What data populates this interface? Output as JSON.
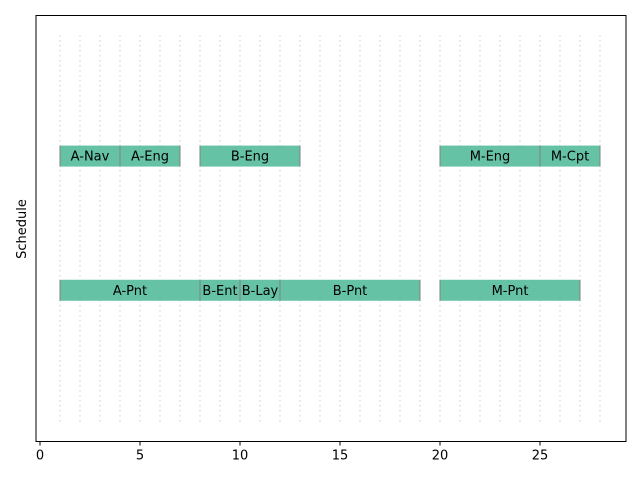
{
  "chart_data": {
    "type": "gantt",
    "title": "",
    "xlabel": "",
    "ylabel": "Schedule",
    "xlim": [
      -0.2,
      29.3
    ],
    "xticks": [
      0,
      5,
      10,
      15,
      20,
      25
    ],
    "ylim": [
      0,
      1
    ],
    "grid": {
      "vertical_dotted": true,
      "x_positions": [
        1,
        2,
        3,
        4,
        5,
        6,
        7,
        8,
        9,
        10,
        11,
        12,
        13,
        14,
        15,
        16,
        17,
        18,
        19,
        20,
        21,
        22,
        23,
        24,
        25,
        26,
        27,
        28
      ]
    },
    "bar_color": "#66c2a5",
    "bar_edge_color": "#808080",
    "grid_color": "#cccccc",
    "rows": [
      {
        "row": "upper",
        "y_center": 0.67
      },
      {
        "row": "lower",
        "y_center": 0.355
      }
    ],
    "tasks": [
      {
        "label": "A-Nav",
        "row": 0,
        "start": 1,
        "end": 4
      },
      {
        "label": "A-Eng",
        "row": 0,
        "start": 4,
        "end": 7
      },
      {
        "label": "B-Eng",
        "row": 0,
        "start": 8,
        "end": 13
      },
      {
        "label": "M-Eng",
        "row": 0,
        "start": 20,
        "end": 25
      },
      {
        "label": "M-Cpt",
        "row": 0,
        "start": 25,
        "end": 28
      },
      {
        "label": "A-Pnt",
        "row": 1,
        "start": 1,
        "end": 8
      },
      {
        "label": "B-Ent",
        "row": 1,
        "start": 8,
        "end": 10
      },
      {
        "label": "B-Lay",
        "row": 1,
        "start": 10,
        "end": 12
      },
      {
        "label": "B-Pnt",
        "row": 1,
        "start": 12,
        "end": 19
      },
      {
        "label": "M-Pnt",
        "row": 1,
        "start": 20,
        "end": 27
      }
    ]
  }
}
